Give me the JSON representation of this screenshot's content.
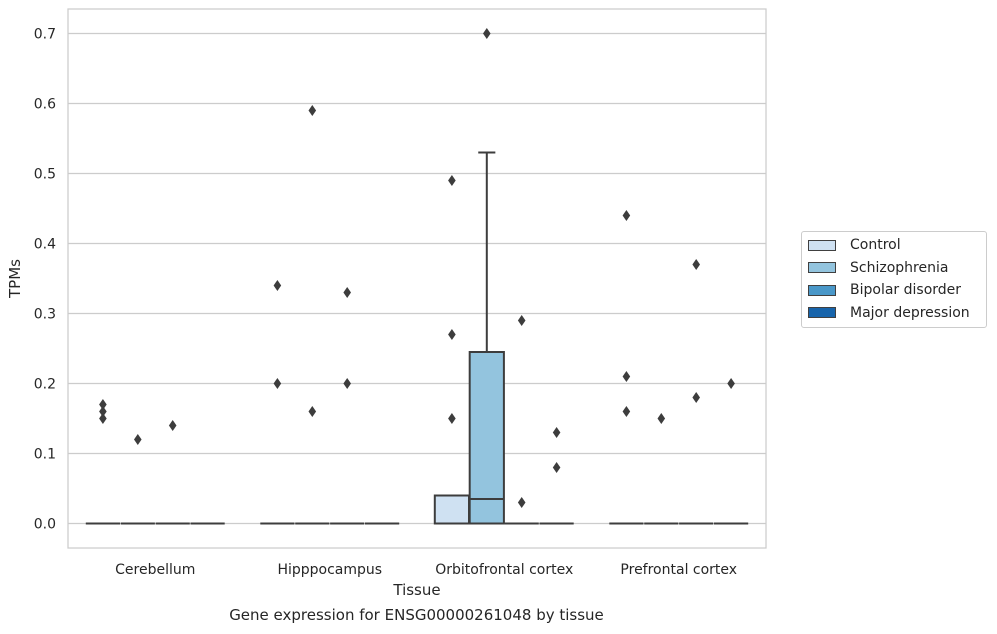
{
  "chart_data": {
    "type": "box",
    "title": "",
    "caption": "Gene expression for ENSG00000261048 by tissue",
    "xlabel": "Tissue",
    "ylabel": "TPMs",
    "ylim": [
      -0.035,
      0.735
    ],
    "yticks": [
      0.0,
      0.1,
      0.2,
      0.3,
      0.4,
      0.5,
      0.6,
      0.7
    ],
    "ytick_labels": [
      "0.0",
      "0.1",
      "0.2",
      "0.3",
      "0.4",
      "0.5",
      "0.6",
      "0.7"
    ],
    "grid": true,
    "legend_position": "right",
    "categories": [
      "Cerebellum",
      "Hipppocampus",
      "Orbitofrontal cortex",
      "Prefrontal cortex"
    ],
    "series": [
      {
        "name": "Control",
        "color": "#cfe1f2",
        "boxes": [
          {
            "q1": 0,
            "median": 0,
            "q3": 0,
            "whisker_low": 0,
            "whisker_high": 0,
            "outliers": [
              0.15,
              0.16,
              0.17
            ]
          },
          {
            "q1": 0,
            "median": 0,
            "q3": 0,
            "whisker_low": 0,
            "whisker_high": 0,
            "outliers": [
              0.2,
              0.34
            ]
          },
          {
            "q1": 0,
            "median": 0,
            "q3": 0.04,
            "whisker_low": 0,
            "whisker_high": 0.04,
            "outliers": [
              0.15,
              0.27,
              0.49
            ]
          },
          {
            "q1": 0,
            "median": 0,
            "q3": 0,
            "whisker_low": 0,
            "whisker_high": 0,
            "outliers": [
              0.16,
              0.21,
              0.44
            ]
          }
        ]
      },
      {
        "name": "Schizophrenia",
        "color": "#93c4de",
        "boxes": [
          {
            "q1": 0,
            "median": 0,
            "q3": 0,
            "whisker_low": 0,
            "whisker_high": 0,
            "outliers": [
              0.12
            ]
          },
          {
            "q1": 0,
            "median": 0,
            "q3": 0,
            "whisker_low": 0,
            "whisker_high": 0,
            "outliers": [
              0.16,
              0.59
            ]
          },
          {
            "q1": 0,
            "median": 0.035,
            "q3": 0.245,
            "whisker_low": 0,
            "whisker_high": 0.53,
            "outliers": [
              0.7
            ]
          },
          {
            "q1": 0,
            "median": 0,
            "q3": 0,
            "whisker_low": 0,
            "whisker_high": 0,
            "outliers": [
              0.15
            ]
          }
        ]
      },
      {
        "name": "Bipolar disorder",
        "color": "#4a98c9",
        "boxes": [
          {
            "q1": 0,
            "median": 0,
            "q3": 0,
            "whisker_low": 0,
            "whisker_high": 0,
            "outliers": [
              0.14
            ]
          },
          {
            "q1": 0,
            "median": 0,
            "q3": 0,
            "whisker_low": 0,
            "whisker_high": 0,
            "outliers": [
              0.2,
              0.33
            ]
          },
          {
            "q1": 0,
            "median": 0,
            "q3": 0,
            "whisker_low": 0,
            "whisker_high": 0,
            "outliers": [
              0.03,
              0.29
            ]
          },
          {
            "q1": 0,
            "median": 0,
            "q3": 0,
            "whisker_low": 0,
            "whisker_high": 0,
            "outliers": [
              0.18,
              0.37
            ]
          }
        ]
      },
      {
        "name": "Major depression",
        "color": "#1764ab",
        "boxes": [
          {
            "q1": 0,
            "median": 0,
            "q3": 0,
            "whisker_low": 0,
            "whisker_high": 0,
            "outliers": []
          },
          {
            "q1": 0,
            "median": 0,
            "q3": 0,
            "whisker_low": 0,
            "whisker_high": 0,
            "outliers": []
          },
          {
            "q1": 0,
            "median": 0,
            "q3": 0,
            "whisker_low": 0,
            "whisker_high": 0,
            "outliers": [
              0.08,
              0.13
            ]
          },
          {
            "q1": 0,
            "median": 0,
            "q3": 0,
            "whisker_low": 0,
            "whisker_high": 0,
            "outliers": [
              0.2
            ]
          }
        ]
      }
    ]
  }
}
